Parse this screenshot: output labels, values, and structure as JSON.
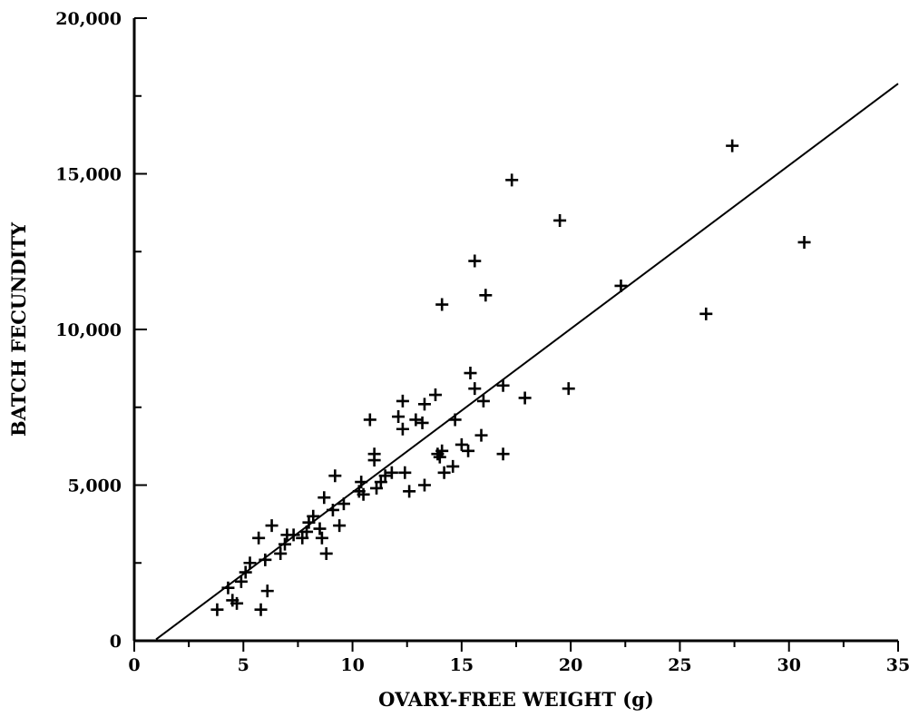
{
  "chart_data": {
    "type": "scatter",
    "title": "",
    "xlabel": "OVARY-FREE WEIGHT (g)",
    "ylabel": "BATCH FECUNDITY",
    "xlim": [
      0,
      35
    ],
    "ylim": [
      0,
      20000
    ],
    "x_ticks": [
      0,
      5,
      10,
      15,
      20,
      25,
      30,
      35
    ],
    "y_ticks": [
      0,
      5000,
      10000,
      15000,
      20000
    ],
    "x_tick_labels": [
      "0",
      "5",
      "10",
      "15",
      "20",
      "25",
      "30",
      "35"
    ],
    "y_tick_labels": [
      "0",
      "5,000",
      "10,000",
      "15,000",
      "20,000"
    ],
    "grid": false,
    "marker": "plus",
    "fit_line": {
      "slope": 525,
      "intercept": -480,
      "x_range": [
        1,
        35
      ]
    },
    "points": [
      [
        3.8,
        1000
      ],
      [
        4.3,
        1700
      ],
      [
        4.5,
        1300
      ],
      [
        4.7,
        1200
      ],
      [
        4.9,
        1900
      ],
      [
        5.1,
        2200
      ],
      [
        5.3,
        2500
      ],
      [
        5.7,
        3300
      ],
      [
        5.8,
        1000
      ],
      [
        6.0,
        2600
      ],
      [
        6.1,
        1600
      ],
      [
        6.3,
        3700
      ],
      [
        6.7,
        2800
      ],
      [
        6.9,
        3100
      ],
      [
        7.0,
        3400
      ],
      [
        7.3,
        3400
      ],
      [
        7.7,
        3300
      ],
      [
        7.9,
        3500
      ],
      [
        8.0,
        3800
      ],
      [
        8.2,
        4000
      ],
      [
        8.5,
        3600
      ],
      [
        8.6,
        3300
      ],
      [
        8.8,
        2800
      ],
      [
        8.7,
        4600
      ],
      [
        9.1,
        4200
      ],
      [
        9.2,
        5300
      ],
      [
        9.4,
        3700
      ],
      [
        9.6,
        4400
      ],
      [
        10.3,
        4800
      ],
      [
        10.4,
        5100
      ],
      [
        10.5,
        4700
      ],
      [
        10.8,
        7100
      ],
      [
        11.0,
        6000
      ],
      [
        11.0,
        5800
      ],
      [
        11.1,
        4900
      ],
      [
        11.3,
        5100
      ],
      [
        11.5,
        5300
      ],
      [
        11.8,
        5400
      ],
      [
        12.1,
        7200
      ],
      [
        12.3,
        7700
      ],
      [
        12.3,
        6800
      ],
      [
        12.4,
        5400
      ],
      [
        12.6,
        4800
      ],
      [
        12.9,
        7100
      ],
      [
        13.2,
        7000
      ],
      [
        13.3,
        7600
      ],
      [
        13.3,
        5000
      ],
      [
        13.8,
        7900
      ],
      [
        13.9,
        6000
      ],
      [
        14.0,
        5900
      ],
      [
        14.1,
        6100
      ],
      [
        14.2,
        5400
      ],
      [
        14.1,
        10800
      ],
      [
        14.6,
        5600
      ],
      [
        14.7,
        7100
      ],
      [
        15.0,
        6300
      ],
      [
        15.3,
        6100
      ],
      [
        15.4,
        8600
      ],
      [
        15.6,
        8100
      ],
      [
        15.6,
        12200
      ],
      [
        15.9,
        6600
      ],
      [
        16.0,
        7700
      ],
      [
        16.1,
        11100
      ],
      [
        16.9,
        8200
      ],
      [
        16.9,
        6000
      ],
      [
        17.3,
        14800
      ],
      [
        17.9,
        7800
      ],
      [
        19.5,
        13500
      ],
      [
        19.9,
        8100
      ],
      [
        22.3,
        11400
      ],
      [
        26.2,
        10500
      ],
      [
        27.4,
        15900
      ],
      [
        30.7,
        12800
      ]
    ]
  }
}
